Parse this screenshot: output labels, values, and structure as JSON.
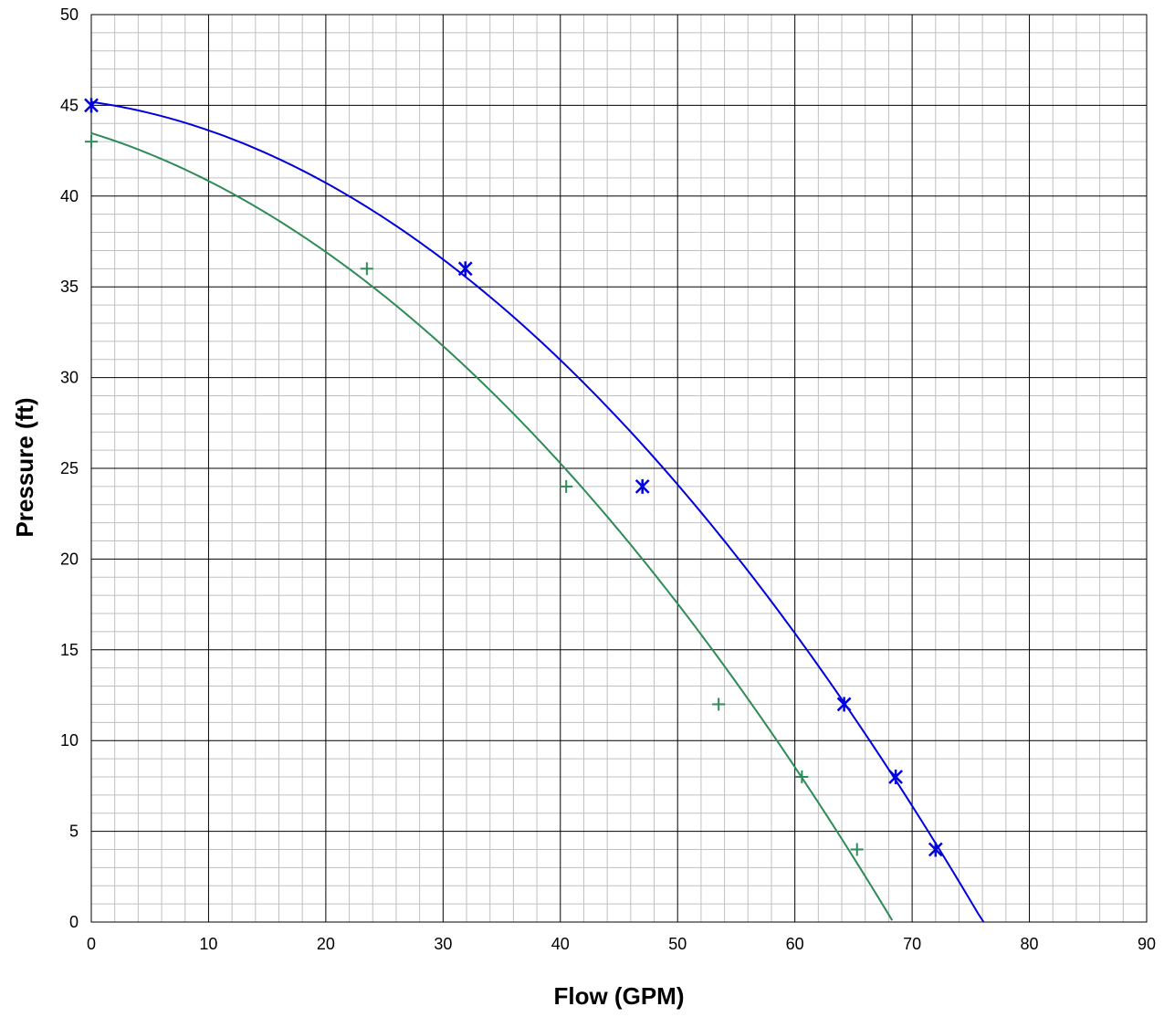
{
  "chart_data": {
    "type": "scatter",
    "title": "",
    "xlabel": "Flow (GPM)",
    "ylabel": "Pressure (ft)",
    "xlim": [
      0,
      90
    ],
    "ylim": [
      0,
      50
    ],
    "x_ticks": [
      "0",
      "10",
      "20",
      "30",
      "40",
      "50",
      "60",
      "70",
      "80",
      "90"
    ],
    "y_ticks": [
      "0",
      "5",
      "10",
      "15",
      "20",
      "25",
      "30",
      "35",
      "40",
      "45",
      "50"
    ],
    "grid": "major and minor",
    "legend": "none",
    "series": [
      {
        "color": "#0000dd",
        "marker": "star",
        "points": [
          [
            0,
            45
          ],
          [
            31.9,
            36
          ],
          [
            47,
            24
          ],
          [
            64.2,
            12
          ],
          [
            68.6,
            8
          ],
          [
            72,
            4
          ]
        ],
        "fit_curve": {
          "type": "quadratic",
          "coefficients": [
            45.19,
            -0.0907,
            -0.00662
          ],
          "x_range": [
            0,
            76.1
          ]
        }
      },
      {
        "color": "#2e8b57",
        "marker": "plus",
        "points": [
          [
            0,
            43
          ],
          [
            23.5,
            36
          ],
          [
            40.5,
            24
          ],
          [
            53.5,
            12
          ],
          [
            60.6,
            8
          ],
          [
            65.3,
            4
          ]
        ],
        "fit_curve": {
          "type": "quadratic",
          "coefficients": [
            43.47,
            -0.2,
            -0.00637
          ],
          "x_range": [
            0,
            68.3
          ]
        }
      }
    ]
  }
}
